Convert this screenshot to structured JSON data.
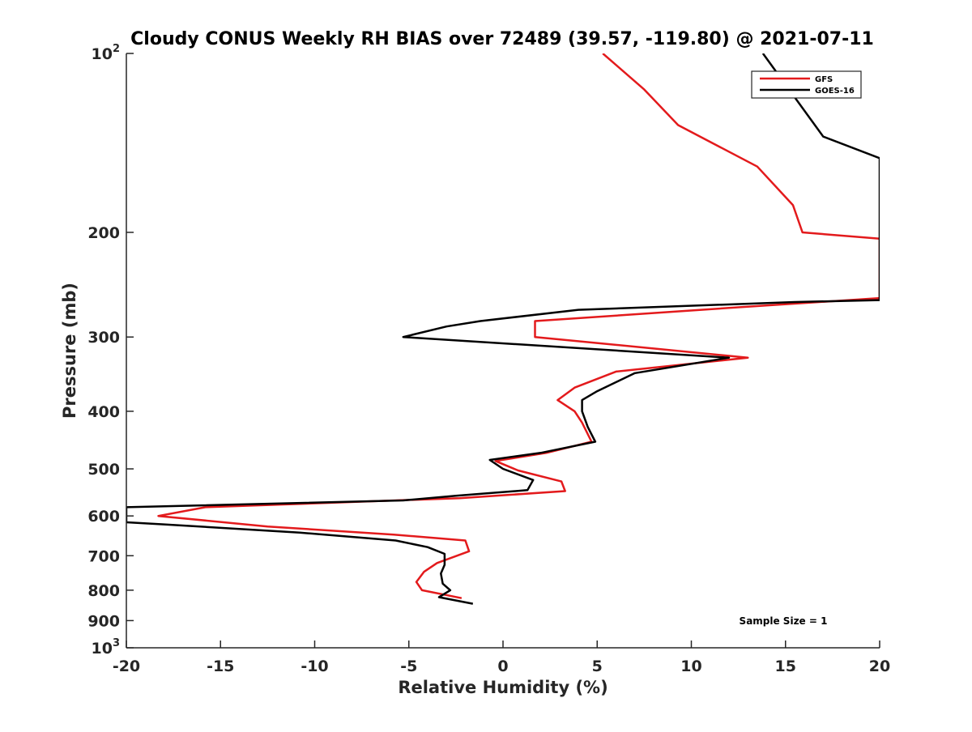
{
  "chart_data": {
    "type": "line",
    "title": "Cloudy CONUS Weekly RH BIAS over 72489 (39.57, -119.80) @ 2021-07-11",
    "xlabel": "Relative Humidity (%)",
    "ylabel": "Pressure (mb)",
    "xlim": [
      -20,
      20
    ],
    "ylim": [
      100,
      1000
    ],
    "yscale": "log",
    "y_reversed": true,
    "grid": false,
    "legend_position": "top-right",
    "x_ticks": [
      "-20",
      "-15",
      "-10",
      "-5",
      "0",
      "5",
      "10",
      "15",
      "20"
    ],
    "x_tick_values": [
      -20,
      -15,
      -10,
      -5,
      0,
      5,
      10,
      15,
      20
    ],
    "y_tick_values": [
      100,
      200,
      300,
      400,
      500,
      600,
      700,
      800,
      900,
      1000
    ],
    "y_ticks": [
      {
        "base": "10",
        "exp": "2"
      },
      {
        "base": "200",
        "exp": ""
      },
      {
        "base": "300",
        "exp": ""
      },
      {
        "base": "400",
        "exp": ""
      },
      {
        "base": "500",
        "exp": ""
      },
      {
        "base": "600",
        "exp": ""
      },
      {
        "base": "700",
        "exp": ""
      },
      {
        "base": "800",
        "exp": ""
      },
      {
        "base": "900",
        "exp": ""
      },
      {
        "base": "10",
        "exp": "3"
      }
    ],
    "annotation": "Sample Size = 1",
    "series": [
      {
        "name": "GFS",
        "color": "#e31a1c",
        "points": [
          [
            5.3,
            100
          ],
          [
            7.5,
            115
          ],
          [
            9.3,
            132
          ],
          [
            13.5,
            155
          ],
          [
            15.4,
            180
          ],
          [
            15.9,
            200
          ],
          [
            20.0,
            205
          ],
          [
            20.0,
            258
          ],
          [
            12.0,
            268
          ],
          [
            1.7,
            282
          ],
          [
            1.7,
            300
          ],
          [
            13.0,
            325
          ],
          [
            6.0,
            343
          ],
          [
            3.8,
            365
          ],
          [
            2.9,
            383
          ],
          [
            3.8,
            400
          ],
          [
            4.2,
            418
          ],
          [
            4.7,
            450
          ],
          [
            2.3,
            470
          ],
          [
            -0.4,
            485
          ],
          [
            0.8,
            503
          ],
          [
            3.1,
            525
          ],
          [
            3.3,
            545
          ],
          [
            -2.3,
            560
          ],
          [
            -15.8,
            580
          ],
          [
            -18.3,
            600
          ],
          [
            -12.5,
            625
          ],
          [
            -5.8,
            645
          ],
          [
            -2.0,
            660
          ],
          [
            -1.8,
            688
          ],
          [
            -3.5,
            720
          ],
          [
            -4.2,
            745
          ],
          [
            -4.6,
            775
          ],
          [
            -4.3,
            800
          ],
          [
            -2.2,
            825
          ]
        ]
      },
      {
        "name": "GOES-16",
        "color": "#000000",
        "points": [
          [
            13.8,
            100
          ],
          [
            17.0,
            138
          ],
          [
            20.0,
            150
          ],
          [
            20.0,
            260
          ],
          [
            15.5,
            262
          ],
          [
            4.0,
            270
          ],
          [
            -1.2,
            282
          ],
          [
            -3.0,
            288
          ],
          [
            -5.3,
            300
          ],
          [
            12.0,
            325
          ],
          [
            7.0,
            345
          ],
          [
            5.0,
            370
          ],
          [
            4.2,
            383
          ],
          [
            4.2,
            400
          ],
          [
            4.5,
            425
          ],
          [
            4.9,
            450
          ],
          [
            2.0,
            470
          ],
          [
            -0.7,
            483
          ],
          [
            0.0,
            500
          ],
          [
            1.6,
            522
          ],
          [
            1.3,
            543
          ],
          [
            -2.5,
            555
          ],
          [
            -5.3,
            565
          ],
          [
            -20.0,
            580
          ],
          [
            -20.0,
            615
          ],
          [
            -18.0,
            620
          ],
          [
            -10.8,
            640
          ],
          [
            -5.7,
            660
          ],
          [
            -4.0,
            677
          ],
          [
            -3.1,
            695
          ],
          [
            -3.1,
            725
          ],
          [
            -3.3,
            750
          ],
          [
            -3.2,
            780
          ],
          [
            -2.8,
            800
          ],
          [
            -3.4,
            822
          ],
          [
            -1.6,
            843
          ]
        ]
      }
    ]
  }
}
